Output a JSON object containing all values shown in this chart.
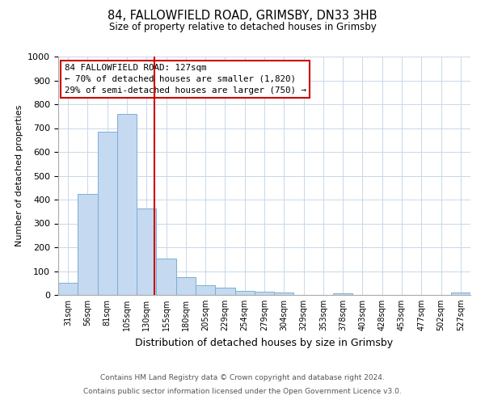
{
  "title1": "84, FALLOWFIELD ROAD, GRIMSBY, DN33 3HB",
  "title2": "Size of property relative to detached houses in Grimsby",
  "xlabel": "Distribution of detached houses by size in Grimsby",
  "ylabel": "Number of detached properties",
  "bin_labels": [
    "31sqm",
    "56sqm",
    "81sqm",
    "105sqm",
    "130sqm",
    "155sqm",
    "180sqm",
    "205sqm",
    "229sqm",
    "254sqm",
    "279sqm",
    "304sqm",
    "329sqm",
    "353sqm",
    "378sqm",
    "403sqm",
    "428sqm",
    "453sqm",
    "477sqm",
    "502sqm",
    "527sqm"
  ],
  "bar_heights": [
    52,
    425,
    685,
    758,
    363,
    152,
    75,
    40,
    32,
    18,
    12,
    10,
    0,
    0,
    8,
    0,
    0,
    0,
    0,
    0,
    10
  ],
  "bar_color": "#c5d9f0",
  "bar_edge_color": "#7bafd4",
  "ylim": [
    0,
    1000
  ],
  "annotation_title": "84 FALLOWFIELD ROAD: 127sqm",
  "annotation_line1": "← 70% of detached houses are smaller (1,820)",
  "annotation_line2": "29% of semi-detached houses are larger (750) →",
  "annotation_box_color": "#ffffff",
  "annotation_box_edge_color": "#cc0000",
  "vline_color": "#cc0000",
  "vline_x": 4.88,
  "footer1": "Contains HM Land Registry data © Crown copyright and database right 2024.",
  "footer2": "Contains public sector information licensed under the Open Government Licence v3.0.",
  "background_color": "#ffffff",
  "grid_color": "#c8d8e8"
}
